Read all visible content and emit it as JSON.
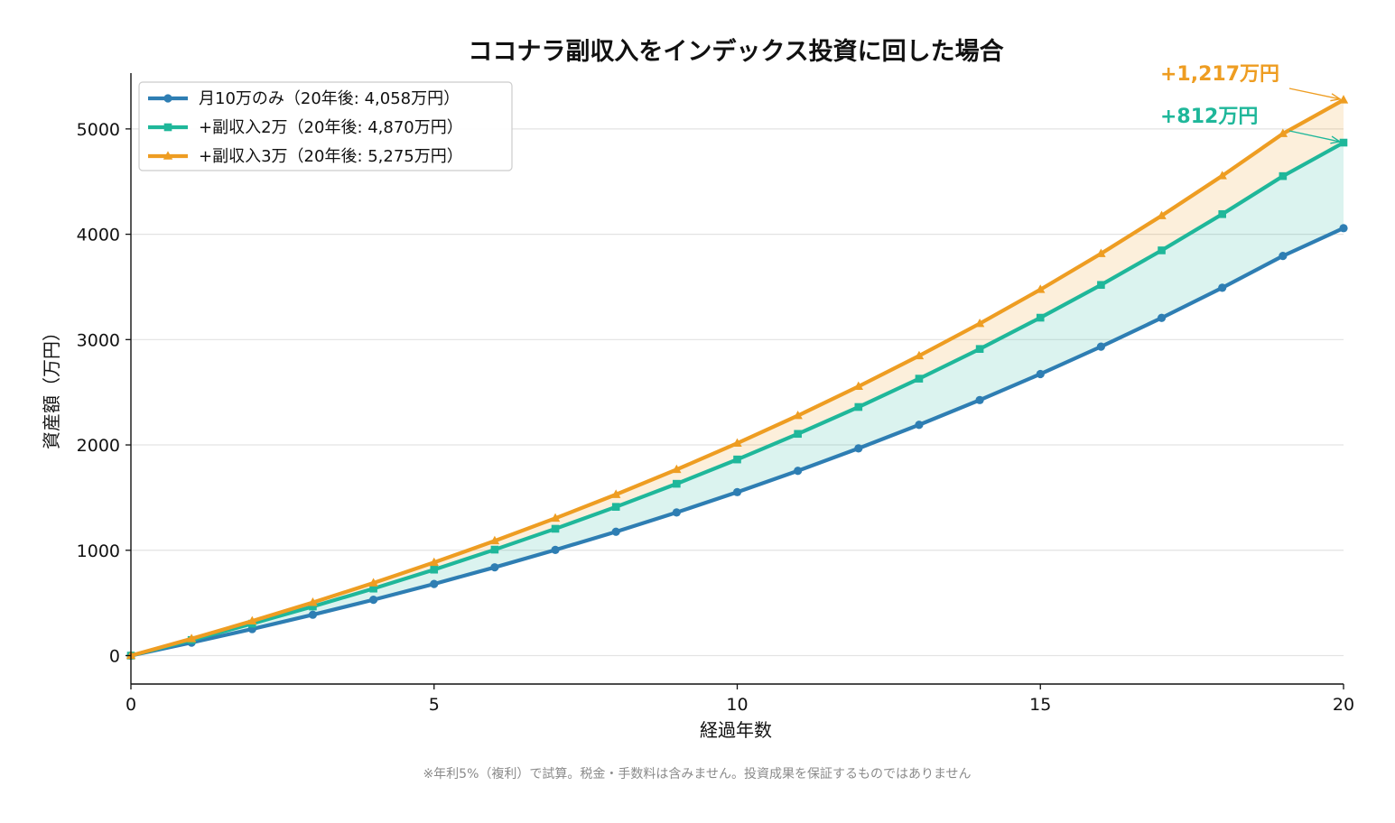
{
  "chart_data": {
    "type": "line",
    "title": "ココナラ副収入をインデックス投資に回した場合",
    "xlabel": "経過年数",
    "ylabel": "資産額（万円）",
    "xlim": [
      0,
      20
    ],
    "ylim": [
      -270,
      5530
    ],
    "x_ticks": [
      0,
      5,
      10,
      15,
      20
    ],
    "y_ticks": [
      0,
      1000,
      2000,
      3000,
      4000,
      5000
    ],
    "grid": "horizontal",
    "legend_position": "top-left",
    "x": [
      0,
      1,
      2,
      3,
      4,
      5,
      6,
      7,
      8,
      9,
      10,
      11,
      12,
      13,
      14,
      15,
      16,
      17,
      18,
      19,
      20
    ],
    "series": [
      {
        "name": "月10万のみ（20年後: 4,058万円）",
        "color": "#2e7eb3",
        "marker": "circle",
        "values": [
          0,
          123,
          252,
          388,
          530,
          680,
          838,
          1003,
          1176,
          1359,
          1552,
          1754,
          1967,
          2191,
          2426,
          2673,
          2933,
          3206,
          3492,
          3794,
          4058
        ]
      },
      {
        "name": "+副収入2万（20年後: 4,870万円）",
        "color": "#1fb79a",
        "marker": "square",
        "values": [
          0,
          148,
          303,
          466,
          636,
          816,
          1006,
          1204,
          1412,
          1631,
          1862,
          2105,
          2360,
          2629,
          2911,
          3208,
          3519,
          3847,
          4191,
          4552,
          4870
        ]
      },
      {
        "name": "+副収入3万（20年後: 5,275万円）",
        "color": "#ee9d22",
        "marker": "triangle",
        "values": [
          0,
          160,
          328,
          504,
          689,
          884,
          1089,
          1304,
          1529,
          1766,
          2016,
          2278,
          2555,
          2846,
          3152,
          3475,
          3816,
          4176,
          4555,
          4955,
          5275
        ]
      }
    ],
    "annotations": [
      {
        "text": "+1,217万円",
        "color": "#ee9d22",
        "x": 20,
        "y": 5275
      },
      {
        "text": "+812万円",
        "color": "#1fb79a",
        "x": 20,
        "y": 4870
      }
    ],
    "fills": [
      {
        "between": [
          0,
          1
        ],
        "color": "#1fb79a"
      },
      {
        "between": [
          1,
          2
        ],
        "color": "#ee9d22"
      }
    ]
  },
  "footnote": "※年利5%（複利）で試算。税金・手数料は含みません。投資成果を保証するものではありません"
}
